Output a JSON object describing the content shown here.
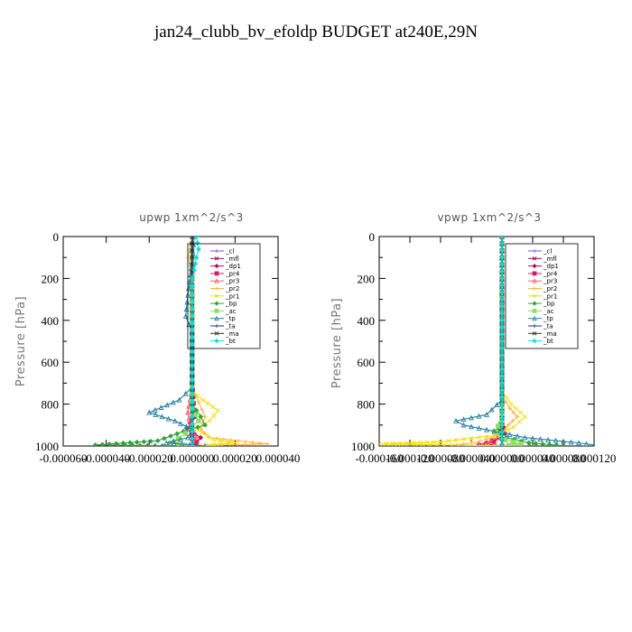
{
  "title": "jan24_clubb_bv_efoldp  BUDGET at240E,29N",
  "colors": {
    "_cl": "#7f4fcf",
    "_mfl": "#8b0a50",
    "_dp1": "#c00060",
    "_pr4": "#d81b60",
    "_pr3": "#f06060",
    "_pr2": "#ffb040",
    "_pr1": "#f0e000",
    "_bp": "#30a040",
    "_ac": "#90e060",
    "_tp": "#2080a0",
    "_ta": "#203080",
    "_ma": "#303030",
    "_bt": "#00e0e0"
  },
  "chart_data": [
    {
      "type": "line",
      "title": "upwp   1xm^2/s^3",
      "ylabel": "Pressure [hPa]",
      "xlabel": "",
      "ylim": [
        1000,
        0
      ],
      "xlim": [
        -6e-05,
        4e-05
      ],
      "y_ticks": [
        0,
        200,
        400,
        600,
        800,
        1000
      ],
      "x_ticks": [
        -6e-05,
        -4e-05,
        -2e-05,
        0.0,
        2e-05,
        4e-05
      ],
      "x_tick_labels": [
        "-0.000060",
        "-0.000040",
        "-0.000020",
        "0.000000",
        "0.000020",
        "0.000040"
      ],
      "legend_position": "upper-right",
      "series": [
        {
          "name": "_cl",
          "points": [
            [
              0.0,
              0
            ],
            [
              0.0,
              500
            ],
            [
              0.0,
              1000
            ]
          ]
        },
        {
          "name": "_mfl",
          "points": [
            [
              0.0,
              0
            ],
            [
              0.0,
              500
            ],
            [
              0.0,
              1000
            ]
          ]
        },
        {
          "name": "_dp1",
          "points": [
            [
              0.0,
              0
            ],
            [
              0.0,
              700
            ],
            [
              0.0,
              860
            ],
            [
              -2e-06,
              920
            ],
            [
              4e-06,
              960
            ],
            [
              2e-06,
              990
            ],
            [
              0.0,
              1000
            ]
          ]
        },
        {
          "name": "_pr4",
          "points": [
            [
              0.0,
              0
            ],
            [
              0.0,
              700
            ],
            [
              1e-06,
              860
            ],
            [
              -2e-06,
              920
            ],
            [
              2e-06,
              980
            ],
            [
              0.0,
              1000
            ]
          ]
        },
        {
          "name": "_pr3",
          "points": [
            [
              0.0,
              0
            ],
            [
              0.0,
              720
            ],
            [
              -2e-06,
              840
            ],
            [
              -1e-06,
              900
            ],
            [
              2e-06,
              960
            ],
            [
              0.0,
              1000
            ]
          ]
        },
        {
          "name": "_pr2",
          "points": [
            [
              0.0,
              0
            ],
            [
              -1e-06,
              60
            ],
            [
              -2e-06,
              100
            ],
            [
              -1e-06,
              140
            ],
            [
              0.0,
              200
            ],
            [
              0.0,
              720
            ],
            [
              6e-06,
              860
            ],
            [
              4e-06,
              920
            ],
            [
              8e-06,
              960
            ],
            [
              3.5e-05,
              990
            ],
            [
              0.0,
              1000
            ]
          ]
        },
        {
          "name": "_pr1",
          "points": [
            [
              0.0,
              0
            ],
            [
              0.0,
              740
            ],
            [
              5e-06,
              780
            ],
            [
              1.2e-05,
              830
            ],
            [
              8e-06,
              880
            ],
            [
              2e-06,
              920
            ],
            [
              1e-05,
              970
            ],
            [
              2e-05,
              985
            ],
            [
              0.0,
              1000
            ]
          ]
        },
        {
          "name": "_bp",
          "points": [
            [
              0.0,
              0
            ],
            [
              0.0,
              800
            ],
            [
              4e-06,
              860
            ],
            [
              6e-06,
              900
            ],
            [
              -4e-06,
              930
            ],
            [
              -1.6e-05,
              975
            ],
            [
              -4.5e-05,
              995
            ],
            [
              0.0,
              1000
            ]
          ]
        },
        {
          "name": "_ac",
          "points": [
            [
              0.0,
              0
            ],
            [
              0.0,
              820
            ],
            [
              3e-06,
              880
            ],
            [
              -3e-06,
              940
            ],
            [
              -1e-05,
              985
            ],
            [
              0.0,
              1000
            ]
          ]
        },
        {
          "name": "_tp",
          "points": [
            [
              1e-06,
              0
            ],
            [
              0.0,
              120
            ],
            [
              -2e-06,
              280
            ],
            [
              -3e-06,
              380
            ],
            [
              0.0,
              460
            ],
            [
              0.0,
              720
            ],
            [
              -6e-06,
              780
            ],
            [
              -2e-05,
              840
            ],
            [
              -8e-06,
              880
            ],
            [
              0.0,
              920
            ],
            [
              -2e-06,
              960
            ],
            [
              -1.2e-05,
              985
            ],
            [
              6e-06,
              1000
            ]
          ]
        },
        {
          "name": "_ta",
          "points": [
            [
              0.0,
              0
            ],
            [
              0.0,
              500
            ],
            [
              0.0,
              1000
            ]
          ]
        },
        {
          "name": "_ma",
          "points": [
            [
              0.0,
              0
            ],
            [
              0.0,
              500
            ],
            [
              0.0,
              1000
            ]
          ]
        },
        {
          "name": "_bt",
          "points": [
            [
              2e-06,
              0
            ],
            [
              3e-06,
              60
            ],
            [
              2e-06,
              100
            ],
            [
              1e-06,
              160
            ],
            [
              0.0,
              200
            ],
            [
              0.0,
              1000
            ]
          ]
        }
      ]
    },
    {
      "type": "line",
      "title": "vpwp   1xm^2/s^3",
      "ylabel": "Pressure [hPa]",
      "xlabel": "",
      "ylim": [
        1000,
        0
      ],
      "xlim": [
        -0.00016,
        0.00012
      ],
      "y_ticks": [
        0,
        200,
        400,
        600,
        800,
        1000
      ],
      "x_ticks": [
        -0.00016,
        -0.00012,
        -8e-05,
        -4e-05,
        0.0,
        4e-05,
        8e-05,
        0.00012
      ],
      "x_tick_labels": [
        "-0.000160",
        "-0.000120",
        "-0.000080",
        "-0.000040",
        "0.000000",
        "0.000040",
        "0.000080",
        "0.000120"
      ],
      "legend_position": "upper-right",
      "series": [
        {
          "name": "_cl",
          "points": [
            [
              0.0,
              0
            ],
            [
              0.0,
              500
            ],
            [
              0.0,
              1000
            ]
          ]
        },
        {
          "name": "_mfl",
          "points": [
            [
              0.0,
              0
            ],
            [
              0.0,
              500
            ],
            [
              0.0,
              1000
            ]
          ]
        },
        {
          "name": "_dp1",
          "points": [
            [
              0.0,
              0
            ],
            [
              0.0,
              880
            ],
            [
              4e-06,
              940
            ],
            [
              -1e-05,
              975
            ],
            [
              -3e-05,
              992
            ],
            [
              0.0,
              1000
            ]
          ]
        },
        {
          "name": "_pr4",
          "points": [
            [
              0.0,
              0
            ],
            [
              0.0,
              900
            ],
            [
              -4e-06,
              960
            ],
            [
              -2e-05,
              990
            ],
            [
              0.0,
              1000
            ]
          ]
        },
        {
          "name": "_pr3",
          "points": [
            [
              0.0,
              0
            ],
            [
              0.0,
              900
            ],
            [
              -6e-06,
              960
            ],
            [
              -2.5e-05,
              995
            ],
            [
              0.0,
              1000
            ]
          ]
        },
        {
          "name": "_pr2",
          "points": [
            [
              0.0,
              0
            ],
            [
              0.0,
              760
            ],
            [
              1e-05,
              820
            ],
            [
              2e-05,
              860
            ],
            [
              8e-06,
              900
            ],
            [
              0.0,
              940
            ],
            [
              -3e-05,
              980
            ],
            [
              -6e-05,
              995
            ],
            [
              0.0,
              1000
            ]
          ]
        },
        {
          "name": "_pr1",
          "points": [
            [
              0.0,
              0
            ],
            [
              0.0,
              740
            ],
            [
              1.2e-05,
              800
            ],
            [
              3e-05,
              860
            ],
            [
              1.5e-05,
              910
            ],
            [
              -1e-05,
              950
            ],
            [
              -8e-05,
              980
            ],
            [
              -0.00016,
              990
            ],
            [
              0.0,
              1000
            ]
          ]
        },
        {
          "name": "_bp",
          "points": [
            [
              0.0,
              0
            ],
            [
              0.0,
              860
            ],
            [
              -4e-06,
              920
            ],
            [
              6e-06,
              960
            ],
            [
              3.5e-05,
              985
            ],
            [
              8e-05,
              998
            ],
            [
              0.0,
              1000
            ]
          ]
        },
        {
          "name": "_ac",
          "points": [
            [
              0.0,
              0
            ],
            [
              0.0,
              880
            ],
            [
              -1e-05,
              930
            ],
            [
              4e-06,
              970
            ],
            [
              2.5e-05,
              990
            ],
            [
              0.0,
              1000
            ]
          ]
        },
        {
          "name": "_tp",
          "points": [
            [
              0.0,
              0
            ],
            [
              0.0,
              780
            ],
            [
              -2e-05,
              850
            ],
            [
              -6e-05,
              880
            ],
            [
              -5e-05,
              900
            ],
            [
              -1e-05,
              930
            ],
            [
              3e-05,
              960
            ],
            [
              0.0001,
              985
            ],
            [
              0.00012,
              995
            ]
          ]
        },
        {
          "name": "_ta",
          "points": [
            [
              0.0,
              0
            ],
            [
              0.0,
              500
            ],
            [
              0.0,
              1000
            ]
          ]
        },
        {
          "name": "_ma",
          "points": [
            [
              0.0,
              0
            ],
            [
              0.0,
              500
            ],
            [
              0.0,
              1000
            ]
          ]
        },
        {
          "name": "_bt",
          "points": [
            [
              0.0,
              0
            ],
            [
              0.0,
              500
            ],
            [
              0.0,
              1000
            ]
          ]
        }
      ]
    }
  ]
}
